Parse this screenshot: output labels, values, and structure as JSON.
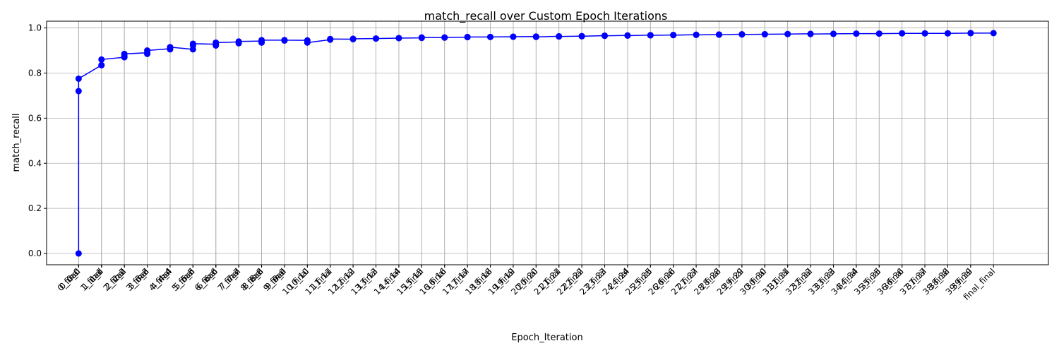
{
  "chart_data": {
    "type": "line",
    "title": "match_recall over Custom Epoch Iterations",
    "xlabel": "Epoch_Iteration",
    "ylabel": "match_recall",
    "ylim": [
      -0.05,
      1.03
    ],
    "yticks": [
      0.0,
      0.2,
      0.4,
      0.6,
      0.8,
      1.0
    ],
    "ytick_labels": [
      "0.0",
      "0.2",
      "0.4",
      "0.6",
      "0.8",
      "1.0"
    ],
    "grid": true,
    "series_color": "#0000ff",
    "x": [
      "0_0",
      "0_nan",
      "0_final",
      "1_1",
      "1_nan",
      "1_final",
      "2_2",
      "2_nan",
      "2_final",
      "3_3",
      "3_nan",
      "3_final",
      "4_4",
      "4_nan",
      "4_final",
      "5_5",
      "5_nan",
      "5_final",
      "6_6",
      "6_nan",
      "6_final",
      "7_7",
      "7_nan",
      "7_final",
      "8_8",
      "8_nan",
      "8_final",
      "9_9",
      "9_nan",
      "9_final",
      "10_10",
      "10_final",
      "11_11",
      "11_final",
      "12_12",
      "12_final",
      "13_13",
      "13_final",
      "14_14",
      "14_final",
      "15_15",
      "15_final",
      "16_16",
      "16_final",
      "17_17",
      "17_final",
      "18_18",
      "18_final",
      "19_19",
      "19_final",
      "20_20",
      "20_final",
      "21_21",
      "21_final",
      "22_22",
      "22_final",
      "23_23",
      "23_final",
      "24_24",
      "24_final",
      "25_25",
      "25_final",
      "26_26",
      "26_final",
      "27_27",
      "27_final",
      "28_28",
      "28_final",
      "29_29",
      "29_final",
      "30_30",
      "30_final",
      "31_31",
      "31_final",
      "32_32",
      "32_final",
      "33_33",
      "33_final",
      "34_34",
      "34_final",
      "35_35",
      "35_final",
      "36_36",
      "36_final",
      "37_37",
      "37_final",
      "38_38",
      "38_final",
      "39_39",
      "39_final",
      "final_final"
    ],
    "x_positions": [
      0,
      0,
      0,
      1,
      1,
      1,
      2,
      2,
      2,
      3,
      3,
      3,
      4,
      4,
      4,
      5,
      5,
      5,
      6,
      6,
      6,
      7,
      7,
      7,
      8,
      8,
      8,
      9,
      9,
      9,
      10,
      10,
      11,
      11,
      12,
      12,
      13,
      13,
      14,
      14,
      15,
      15,
      16,
      16,
      17,
      17,
      18,
      18,
      19,
      19,
      20,
      20,
      21,
      21,
      22,
      22,
      23,
      23,
      24,
      24,
      25,
      25,
      26,
      26,
      27,
      27,
      28,
      28,
      29,
      29,
      30,
      30,
      31,
      31,
      32,
      32,
      33,
      33,
      34,
      34,
      35,
      35,
      36,
      36,
      37,
      37,
      38,
      38,
      39,
      39,
      40
    ],
    "values": [
      0.0,
      0.72,
      0.775,
      0.835,
      0.835,
      0.86,
      0.87,
      0.875,
      0.885,
      0.89,
      0.885,
      0.9,
      0.908,
      0.905,
      0.915,
      0.905,
      0.922,
      0.93,
      0.928,
      0.922,
      0.935,
      0.938,
      0.932,
      0.94,
      0.942,
      0.935,
      0.946,
      0.946,
      0.944,
      0.946,
      0.945,
      0.935,
      0.948,
      0.951,
      0.95,
      0.952,
      0.953,
      0.953,
      0.955,
      0.955,
      0.956,
      0.958,
      0.957,
      0.958,
      0.959,
      0.96,
      0.96,
      0.96,
      0.961,
      0.961,
      0.962,
      0.96,
      0.963,
      0.962,
      0.964,
      0.963,
      0.966,
      0.965,
      0.967,
      0.966,
      0.968,
      0.967,
      0.969,
      0.968,
      0.97,
      0.969,
      0.971,
      0.97,
      0.972,
      0.971,
      0.972,
      0.972,
      0.973,
      0.973,
      0.974,
      0.973,
      0.974,
      0.974,
      0.975,
      0.975,
      0.975,
      0.975,
      0.976,
      0.976,
      0.976,
      0.976,
      0.976,
      0.976,
      0.977,
      0.977,
      0.977
    ]
  }
}
